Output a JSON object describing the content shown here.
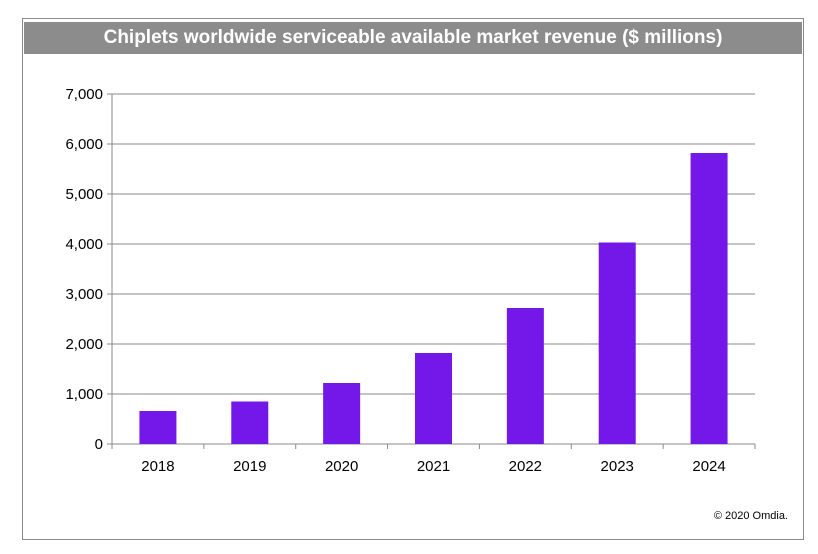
{
  "chart_data": {
    "type": "bar",
    "title": "Chiplets worldwide serviceable available market revenue ($ millions)",
    "categories": [
      "2018",
      "2019",
      "2020",
      "2021",
      "2022",
      "2023",
      "2024"
    ],
    "values": [
      660,
      850,
      1220,
      1820,
      2720,
      4030,
      5820
    ],
    "xlabel": "",
    "ylabel": "",
    "ylim": [
      0,
      7000
    ],
    "yticks": [
      "0",
      "1,000",
      "2,000",
      "3,000",
      "4,000",
      "5,000",
      "6,000",
      "7,000"
    ],
    "grid": true,
    "legend": "none",
    "bar_color": "#7318E8",
    "credit": "© 2020 Omdia."
  }
}
